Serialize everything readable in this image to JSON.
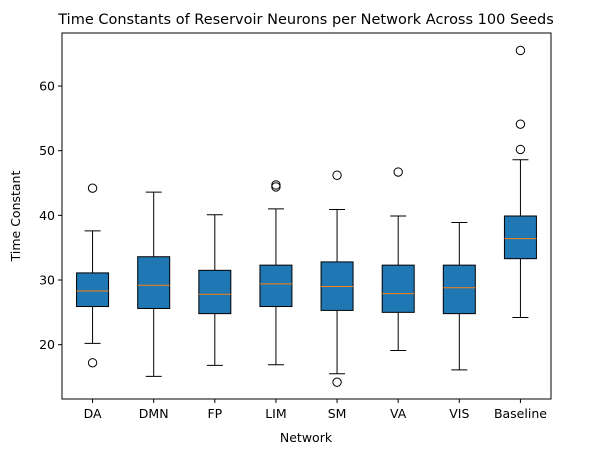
{
  "chart_data": {
    "type": "box",
    "title": "Time Constants of Reservoir Neurons per Network Across 100 Seeds",
    "xlabel": "Network",
    "ylabel": "Time Constant",
    "ylim": [
      11.6,
      68.2
    ],
    "yticks": [
      20,
      30,
      40,
      50,
      60
    ],
    "grid": false,
    "box_color": "#1f77b4",
    "median_color": "#ff7f0e",
    "series": [
      {
        "category": "DA",
        "whisker_low": 20.2,
        "q1": 25.9,
        "median": 28.3,
        "q3": 31.1,
        "whisker_high": 37.6,
        "outliers": [
          44.2,
          17.2
        ]
      },
      {
        "category": "DMN",
        "whisker_low": 15.1,
        "q1": 25.6,
        "median": 29.2,
        "q3": 33.6,
        "whisker_high": 43.6,
        "outliers": []
      },
      {
        "category": "FP",
        "whisker_low": 16.8,
        "q1": 24.8,
        "median": 27.8,
        "q3": 31.5,
        "whisker_high": 40.1,
        "outliers": []
      },
      {
        "category": "LIM",
        "whisker_low": 16.9,
        "q1": 25.9,
        "median": 29.4,
        "q3": 32.3,
        "whisker_high": 41.0,
        "outliers": [
          44.7,
          44.4
        ]
      },
      {
        "category": "SM",
        "whisker_low": 15.5,
        "q1": 25.3,
        "median": 29.0,
        "q3": 32.8,
        "whisker_high": 40.9,
        "outliers": [
          46.2,
          14.2
        ]
      },
      {
        "category": "VA",
        "whisker_low": 19.1,
        "q1": 25.0,
        "median": 27.9,
        "q3": 32.3,
        "whisker_high": 39.9,
        "outliers": [
          46.7
        ]
      },
      {
        "category": "VIS",
        "whisker_low": 16.1,
        "q1": 24.8,
        "median": 28.8,
        "q3": 32.3,
        "whisker_high": 38.9,
        "outliers": []
      },
      {
        "category": "Baseline",
        "whisker_low": 24.2,
        "q1": 33.3,
        "median": 36.4,
        "q3": 39.9,
        "whisker_high": 48.6,
        "outliers": [
          65.5,
          54.1,
          50.2
        ]
      }
    ]
  }
}
